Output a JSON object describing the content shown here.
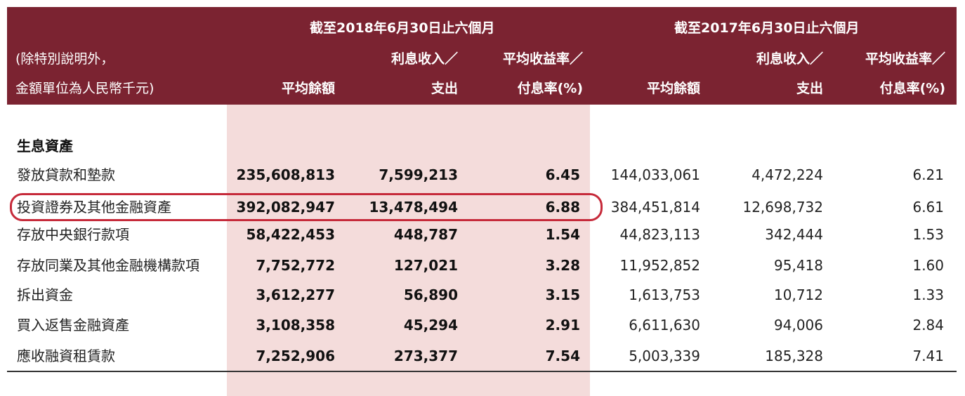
{
  "header": {
    "period_2018": "截至2018年6月30日止六個月",
    "period_2017": "截至2017年6月30日止六個月",
    "unit_note_line1": "(除特別說明外，",
    "unit_note_line2": "金額單位為人民幣千元)",
    "col_avg_balance": "平均餘額",
    "col_interest_line1": "利息收入／",
    "col_interest_line2": "支出",
    "col_yield_line1": "平均收益率／",
    "col_yield_line2": "付息率(%)"
  },
  "section_title": "生息資產",
  "rows": [
    {
      "label": "發放貸款和墊款",
      "avg_2018": "235,608,813",
      "int_2018": "7,599,213",
      "yield_2018": "6.45",
      "avg_2017": "144,033,061",
      "int_2017": "4,472,224",
      "yield_2017": "6.21"
    },
    {
      "label": "投資證券及其他金融資產",
      "avg_2018": "392,082,947",
      "int_2018": "13,478,494",
      "yield_2018": "6.88",
      "avg_2017": "384,451,814",
      "int_2017": "12,698,732",
      "yield_2017": "6.61"
    },
    {
      "label": "存放中央銀行款項",
      "avg_2018": "58,422,453",
      "int_2018": "448,787",
      "yield_2018": "1.54",
      "avg_2017": "44,823,113",
      "int_2017": "342,444",
      "yield_2017": "1.53"
    },
    {
      "label": "存放同業及其他金融機構款項",
      "avg_2018": "7,752,772",
      "int_2018": "127,021",
      "yield_2018": "3.28",
      "avg_2017": "11,952,852",
      "int_2017": "95,418",
      "yield_2017": "1.60"
    },
    {
      "label": "拆出資金",
      "avg_2018": "3,612,277",
      "int_2018": "56,890",
      "yield_2018": "3.15",
      "avg_2017": "1,613,753",
      "int_2017": "10,712",
      "yield_2017": "1.33"
    },
    {
      "label": "買入返售金融資產",
      "avg_2018": "3,108,358",
      "int_2018": "45,294",
      "yield_2018": "2.91",
      "avg_2017": "6,611,630",
      "int_2017": "94,006",
      "yield_2017": "2.84"
    },
    {
      "label": "應收融資租賃款",
      "avg_2018": "7,252,906",
      "int_2018": "273,377",
      "yield_2018": "7.54",
      "avg_2017": "5,003,339",
      "int_2017": "185,328",
      "yield_2017": "7.41"
    }
  ],
  "colors": {
    "header_bg": "#7b2331",
    "shade_bg": "#f4dcdb",
    "highlight": "#c62a3a"
  }
}
